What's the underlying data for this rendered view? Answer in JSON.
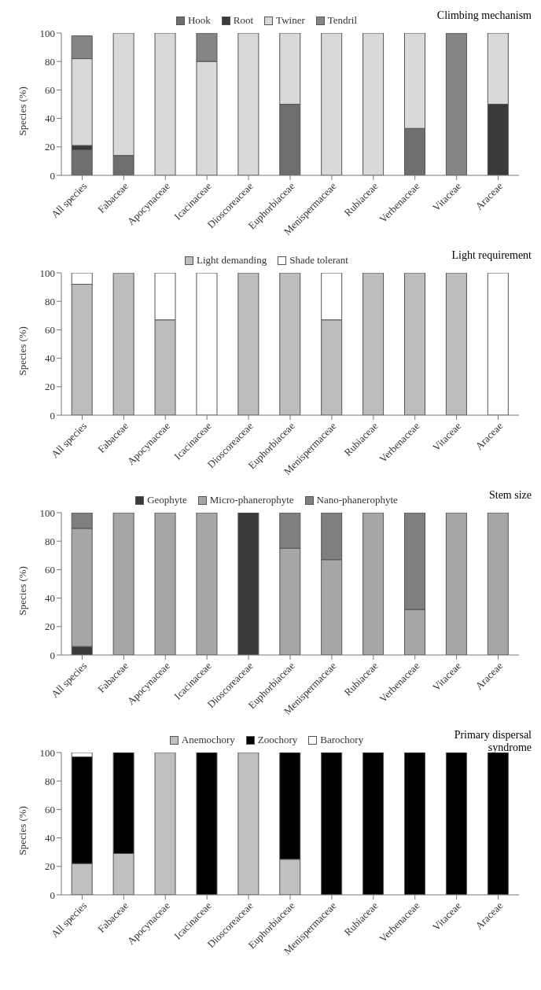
{
  "chart_data": [
    {
      "type": "bar",
      "title": "Climbing mechanism",
      "ylabel": "Species (%)",
      "stacked": true,
      "legend": "top",
      "grid": false,
      "categories": [
        "All species",
        "Fabaceae",
        "Apocynaceae",
        "Icacinaceae",
        "Dioscoreaceae",
        "Euphorbiaceae",
        "Menispermaceae",
        "Rubiaceae",
        "Verbenaceae",
        "Vitaceae",
        "Araceae"
      ],
      "series": [
        {
          "name": "Hook",
          "color": "#6e6e6e",
          "values": [
            18,
            14,
            0,
            0,
            0,
            50,
            0,
            0,
            33,
            0,
            0
          ]
        },
        {
          "name": "Root",
          "color": "#3a3a3a",
          "values": [
            3,
            0,
            0,
            0,
            0,
            0,
            0,
            0,
            0,
            0,
            50
          ]
        },
        {
          "name": "Twiner",
          "color": "#d9d9d9",
          "values": [
            61,
            86,
            100,
            80,
            100,
            50,
            100,
            100,
            67,
            0,
            50
          ]
        },
        {
          "name": "Tendril",
          "color": "#858585",
          "values": [
            16,
            0,
            0,
            20,
            0,
            0,
            0,
            0,
            0,
            100,
            0
          ]
        }
      ],
      "ylim": [
        0,
        100
      ],
      "yticks": [
        0,
        20,
        40,
        60,
        80,
        100
      ]
    },
    {
      "type": "bar",
      "title": "Light requirement",
      "ylabel": "Species (%)",
      "stacked": true,
      "legend": "top",
      "grid": false,
      "categories": [
        "All species",
        "Fabaceae",
        "Apocynaceae",
        "Icacinaceae",
        "Dioscoreaceae",
        "Euphorbiaceae",
        "Menispermaceae",
        "Rubiaceae",
        "Verbenaceae",
        "Vitaceae",
        "Araceae"
      ],
      "series": [
        {
          "name": "Light demanding",
          "color": "#bdbdbd",
          "values": [
            92,
            100,
            67,
            0,
            100,
            100,
            67,
            100,
            100,
            100,
            0
          ]
        },
        {
          "name": "Shade tolerant",
          "color": "#ffffff",
          "values": [
            8,
            0,
            33,
            100,
            0,
            0,
            33,
            0,
            0,
            0,
            100
          ]
        }
      ],
      "ylim": [
        0,
        100
      ],
      "yticks": [
        0,
        20,
        40,
        60,
        80,
        100
      ]
    },
    {
      "type": "bar",
      "title": "Stem size",
      "ylabel": "Species (%)",
      "stacked": true,
      "legend": "top",
      "grid": false,
      "categories": [
        "All species",
        "Fabaceae",
        "Apocynaceae",
        "Icacinaceae",
        "Dioscoreaceae",
        "Euphorbiaceae",
        "Menispermaceae",
        "Rubiaceae",
        "Verbenaceae",
        "Vitaceae",
        "Araceae"
      ],
      "series": [
        {
          "name": "Geophyte",
          "color": "#3a3a3a",
          "values": [
            6,
            0,
            0,
            0,
            100,
            0,
            0,
            0,
            0,
            0,
            0
          ]
        },
        {
          "name": "Micro-phanerophyte",
          "color": "#a6a6a6",
          "values": [
            83,
            100,
            100,
            100,
            0,
            75,
            67,
            100,
            32,
            100,
            100
          ]
        },
        {
          "name": "Nano-phanerophyte",
          "color": "#7f7f7f",
          "values": [
            11,
            0,
            0,
            0,
            0,
            25,
            33,
            0,
            68,
            0,
            0
          ]
        }
      ],
      "ylim": [
        0,
        100
      ],
      "yticks": [
        0,
        20,
        40,
        60,
        80,
        100
      ]
    },
    {
      "type": "bar",
      "title": "Primary dispersal syndrome",
      "ylabel": "Species (%)",
      "stacked": true,
      "legend": "top",
      "grid": false,
      "categories": [
        "All species",
        "Fabaceae",
        "Apocynaceae",
        "Icacinaceae",
        "Dioscoreaceae",
        "Euphorbiaceae",
        "Menispermaceae",
        "Rubiaceae",
        "Verbenaceae",
        "Vitaceae",
        "Araceae"
      ],
      "series": [
        {
          "name": "Anemochory",
          "color": "#c0c0c0",
          "values": [
            22,
            29,
            100,
            0,
            100,
            25,
            0,
            0,
            0,
            0,
            0
          ]
        },
        {
          "name": "Zoochory",
          "color": "#000000",
          "values": [
            75,
            71,
            0,
            100,
            0,
            75,
            100,
            100,
            100,
            100,
            100
          ]
        },
        {
          "name": "Barochory",
          "color": "#ffffff",
          "values": [
            3,
            0,
            0,
            0,
            0,
            0,
            0,
            0,
            0,
            0,
            0
          ]
        }
      ],
      "ylim": [
        0,
        100
      ],
      "yticks": [
        0,
        20,
        40,
        60,
        80,
        100
      ]
    }
  ]
}
